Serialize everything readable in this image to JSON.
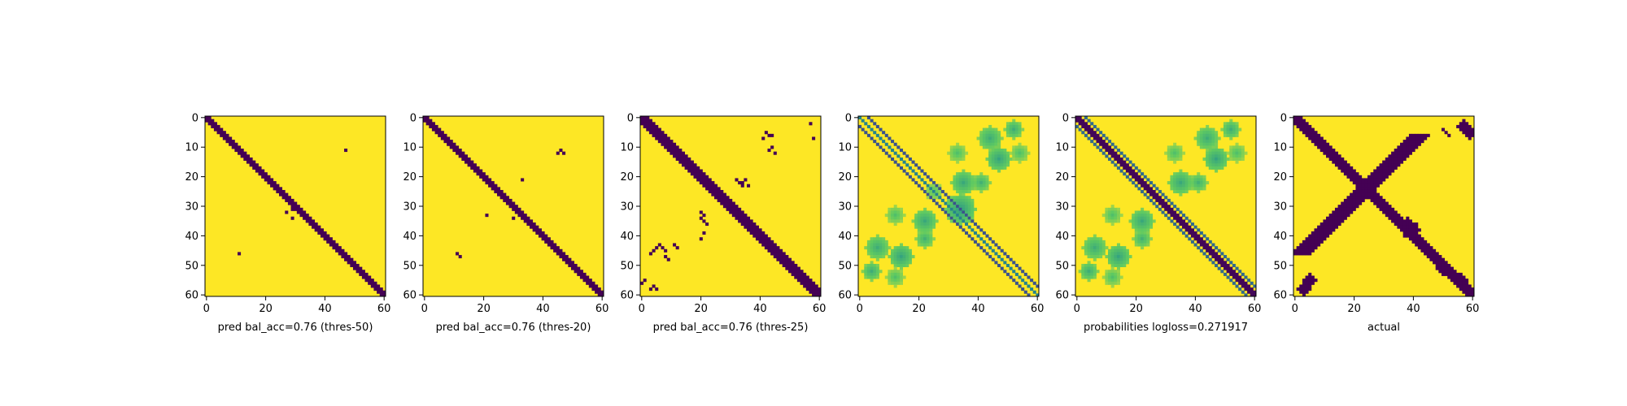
{
  "chart_data": [
    {
      "type": "heatmap",
      "title": "",
      "xlabel": "pred bal_acc=0.76 (thres-50)",
      "ylabel": "",
      "x_ticks": [
        "0",
        "20",
        "40",
        "60"
      ],
      "y_ticks": [
        "0",
        "10",
        "20",
        "30",
        "40",
        "50",
        "60"
      ],
      "xlim": [
        0,
        60
      ],
      "ylim": [
        60,
        0
      ],
      "colormap": "viridis",
      "value_range": [
        0,
        1
      ],
      "grid": false,
      "size": 61,
      "diagonal_band": {
        "value": 0,
        "halfwidth": 1.7,
        "weight": 1
      },
      "blobs": [],
      "specks": [
        [
          11,
          47
        ],
        [
          31,
          29
        ],
        [
          32,
          27
        ],
        [
          34,
          29
        ],
        [
          46,
          11
        ]
      ]
    },
    {
      "type": "heatmap",
      "title": "",
      "xlabel": "pred bal_acc=0.76 (thres-20)",
      "ylabel": "",
      "x_ticks": [
        "0",
        "20",
        "40",
        "60"
      ],
      "y_ticks": [
        "0",
        "10",
        "20",
        "30",
        "40",
        "50",
        "60"
      ],
      "xlim": [
        0,
        60
      ],
      "ylim": [
        60,
        0
      ],
      "colormap": "viridis",
      "value_range": [
        0,
        1
      ],
      "grid": false,
      "size": 61,
      "diagonal_band": {
        "value": 0,
        "halfwidth": 1.8,
        "weight": 1
      },
      "blobs": [],
      "specks": [
        [
          11,
          46
        ],
        [
          12,
          45
        ],
        [
          12,
          47
        ],
        [
          21,
          33
        ],
        [
          33,
          21
        ],
        [
          34,
          30
        ],
        [
          46,
          11
        ],
        [
          47,
          12
        ]
      ]
    },
    {
      "type": "heatmap",
      "title": "",
      "xlabel": "pred bal_acc=0.76 (thres-25)",
      "ylabel": "",
      "x_ticks": [
        "0",
        "20",
        "40",
        "60"
      ],
      "y_ticks": [
        "0",
        "10",
        "20",
        "30",
        "40",
        "50",
        "60"
      ],
      "xlim": [
        0,
        60
      ],
      "ylim": [
        60,
        0
      ],
      "colormap": "viridis",
      "value_range": [
        0,
        1
      ],
      "grid": false,
      "size": 61,
      "diagonal_band": {
        "value": 0,
        "halfwidth": 2.2,
        "weight": 1
      },
      "blobs": [],
      "specks": [
        [
          5,
          42
        ],
        [
          6,
          43
        ],
        [
          7,
          41
        ],
        [
          6,
          44
        ],
        [
          2,
          57
        ],
        [
          7,
          58
        ],
        [
          10,
          44
        ],
        [
          11,
          43
        ],
        [
          12,
          45
        ],
        [
          21,
          32
        ],
        [
          22,
          33
        ],
        [
          22,
          34
        ],
        [
          23,
          34
        ],
        [
          21,
          35
        ],
        [
          23,
          36
        ],
        [
          32,
          20
        ],
        [
          33,
          21
        ],
        [
          34,
          20
        ],
        [
          35,
          21
        ],
        [
          36,
          22
        ],
        [
          39,
          21
        ],
        [
          41,
          20
        ],
        [
          43,
          6
        ],
        [
          44,
          5
        ],
        [
          45,
          4
        ],
        [
          44,
          7
        ],
        [
          45,
          8
        ],
        [
          46,
          3
        ],
        [
          43,
          11
        ],
        [
          44,
          12
        ],
        [
          47,
          8
        ],
        [
          48,
          9
        ],
        [
          55,
          1
        ],
        [
          56,
          0
        ],
        [
          57,
          4
        ],
        [
          58,
          3
        ],
        [
          58,
          5
        ]
      ]
    },
    {
      "type": "heatmap",
      "title": "",
      "xlabel": "",
      "ylabel": "",
      "x_ticks": [
        "0",
        "20",
        "40",
        "60"
      ],
      "y_ticks": [
        "0",
        "10",
        "20",
        "30",
        "40",
        "50",
        "60"
      ],
      "xlim": [
        0,
        60
      ],
      "ylim": [
        60,
        0
      ],
      "colormap": "viridis",
      "value_range": [
        0,
        1
      ],
      "grid": false,
      "size": 61,
      "diagonal_band": {
        "value": 0.9,
        "halfwidth": 1,
        "weight": 0
      },
      "offdiag_lines": [
        {
          "offset": 0,
          "value": 0.45
        },
        {
          "offset": 3,
          "value": 0.25
        },
        {
          "offset": -3,
          "value": 0.25
        }
      ],
      "blobs": [
        [
          44,
          6,
          4,
          0.62
        ],
        [
          7,
          44,
          4,
          0.62
        ],
        [
          47,
          14,
          4,
          0.58
        ],
        [
          14,
          47,
          4,
          0.58
        ],
        [
          52,
          4,
          3,
          0.62
        ],
        [
          4,
          52,
          3,
          0.62
        ],
        [
          35,
          22,
          4,
          0.6
        ],
        [
          22,
          35,
          4,
          0.6
        ],
        [
          41,
          22,
          3,
          0.64
        ],
        [
          22,
          41,
          3,
          0.64
        ],
        [
          33,
          12,
          3,
          0.7
        ],
        [
          12,
          33,
          3,
          0.7
        ],
        [
          54,
          12,
          3,
          0.7
        ],
        [
          12,
          54,
          3,
          0.7
        ],
        [
          31,
          34,
          5,
          0.55
        ],
        [
          25,
          25,
          3,
          0.72
        ]
      ],
      "specks": []
    },
    {
      "type": "heatmap",
      "title": "",
      "xlabel": "probabilities logloss=0.271917",
      "ylabel": "",
      "x_ticks": [
        "0",
        "20",
        "40",
        "60"
      ],
      "y_ticks": [
        "0",
        "10",
        "20",
        "30",
        "40",
        "50",
        "60"
      ],
      "xlim": [
        0,
        60
      ],
      "ylim": [
        60,
        0
      ],
      "colormap": "viridis",
      "value_range": [
        0,
        1
      ],
      "grid": false,
      "size": 61,
      "diagonal_band": {
        "value": 0.02,
        "halfwidth": 1.8,
        "weight": 1
      },
      "offdiag_lines": [
        {
          "offset": 3,
          "value": 0.35
        },
        {
          "offset": -3,
          "value": 0.35
        }
      ],
      "blobs": [
        [
          44,
          6,
          4,
          0.62
        ],
        [
          7,
          44,
          4,
          0.62
        ],
        [
          47,
          14,
          4,
          0.58
        ],
        [
          14,
          47,
          4,
          0.58
        ],
        [
          52,
          4,
          3,
          0.62
        ],
        [
          4,
          52,
          3,
          0.62
        ],
        [
          35,
          22,
          4,
          0.6
        ],
        [
          22,
          35,
          4,
          0.6
        ],
        [
          41,
          22,
          3,
          0.64
        ],
        [
          22,
          41,
          3,
          0.64
        ],
        [
          33,
          12,
          3,
          0.7
        ],
        [
          12,
          33,
          3,
          0.7
        ],
        [
          54,
          12,
          3,
          0.7
        ],
        [
          12,
          54,
          3,
          0.7
        ]
      ],
      "specks": []
    },
    {
      "type": "heatmap",
      "title": "",
      "xlabel": "actual",
      "ylabel": "",
      "x_ticks": [
        "0",
        "20",
        "40",
        "60"
      ],
      "y_ticks": [
        "0",
        "10",
        "20",
        "30",
        "40",
        "50",
        "60"
      ],
      "xlim": [
        0,
        60
      ],
      "ylim": [
        60,
        0
      ],
      "colormap": "viridis",
      "value_range": [
        0,
        1
      ],
      "grid": false,
      "size": 61,
      "diagonal_band": {
        "value": 0,
        "halfwidth": 2.6,
        "weight": 1
      },
      "antidiag_band": {
        "value": 0,
        "halfwidth": 2.2,
        "from": 6,
        "to": 46
      },
      "blobs": [
        [
          24,
          24,
          3,
          0
        ],
        [
          38,
          39,
          3,
          0
        ],
        [
          36,
          38,
          2,
          0
        ],
        [
          51,
          50,
          2,
          0
        ],
        [
          55,
          56,
          2,
          0
        ],
        [
          55,
          5,
          2,
          0
        ],
        [
          58,
          3,
          2,
          0
        ],
        [
          3,
          57,
          2,
          0
        ],
        [
          5,
          59,
          2,
          0
        ]
      ],
      "specks": [
        [
          29,
          20
        ],
        [
          30,
          19
        ],
        [
          31,
          18
        ],
        [
          33,
          17
        ],
        [
          34,
          16
        ],
        [
          4,
          50
        ],
        [
          5,
          51
        ],
        [
          6,
          52
        ]
      ]
    }
  ]
}
